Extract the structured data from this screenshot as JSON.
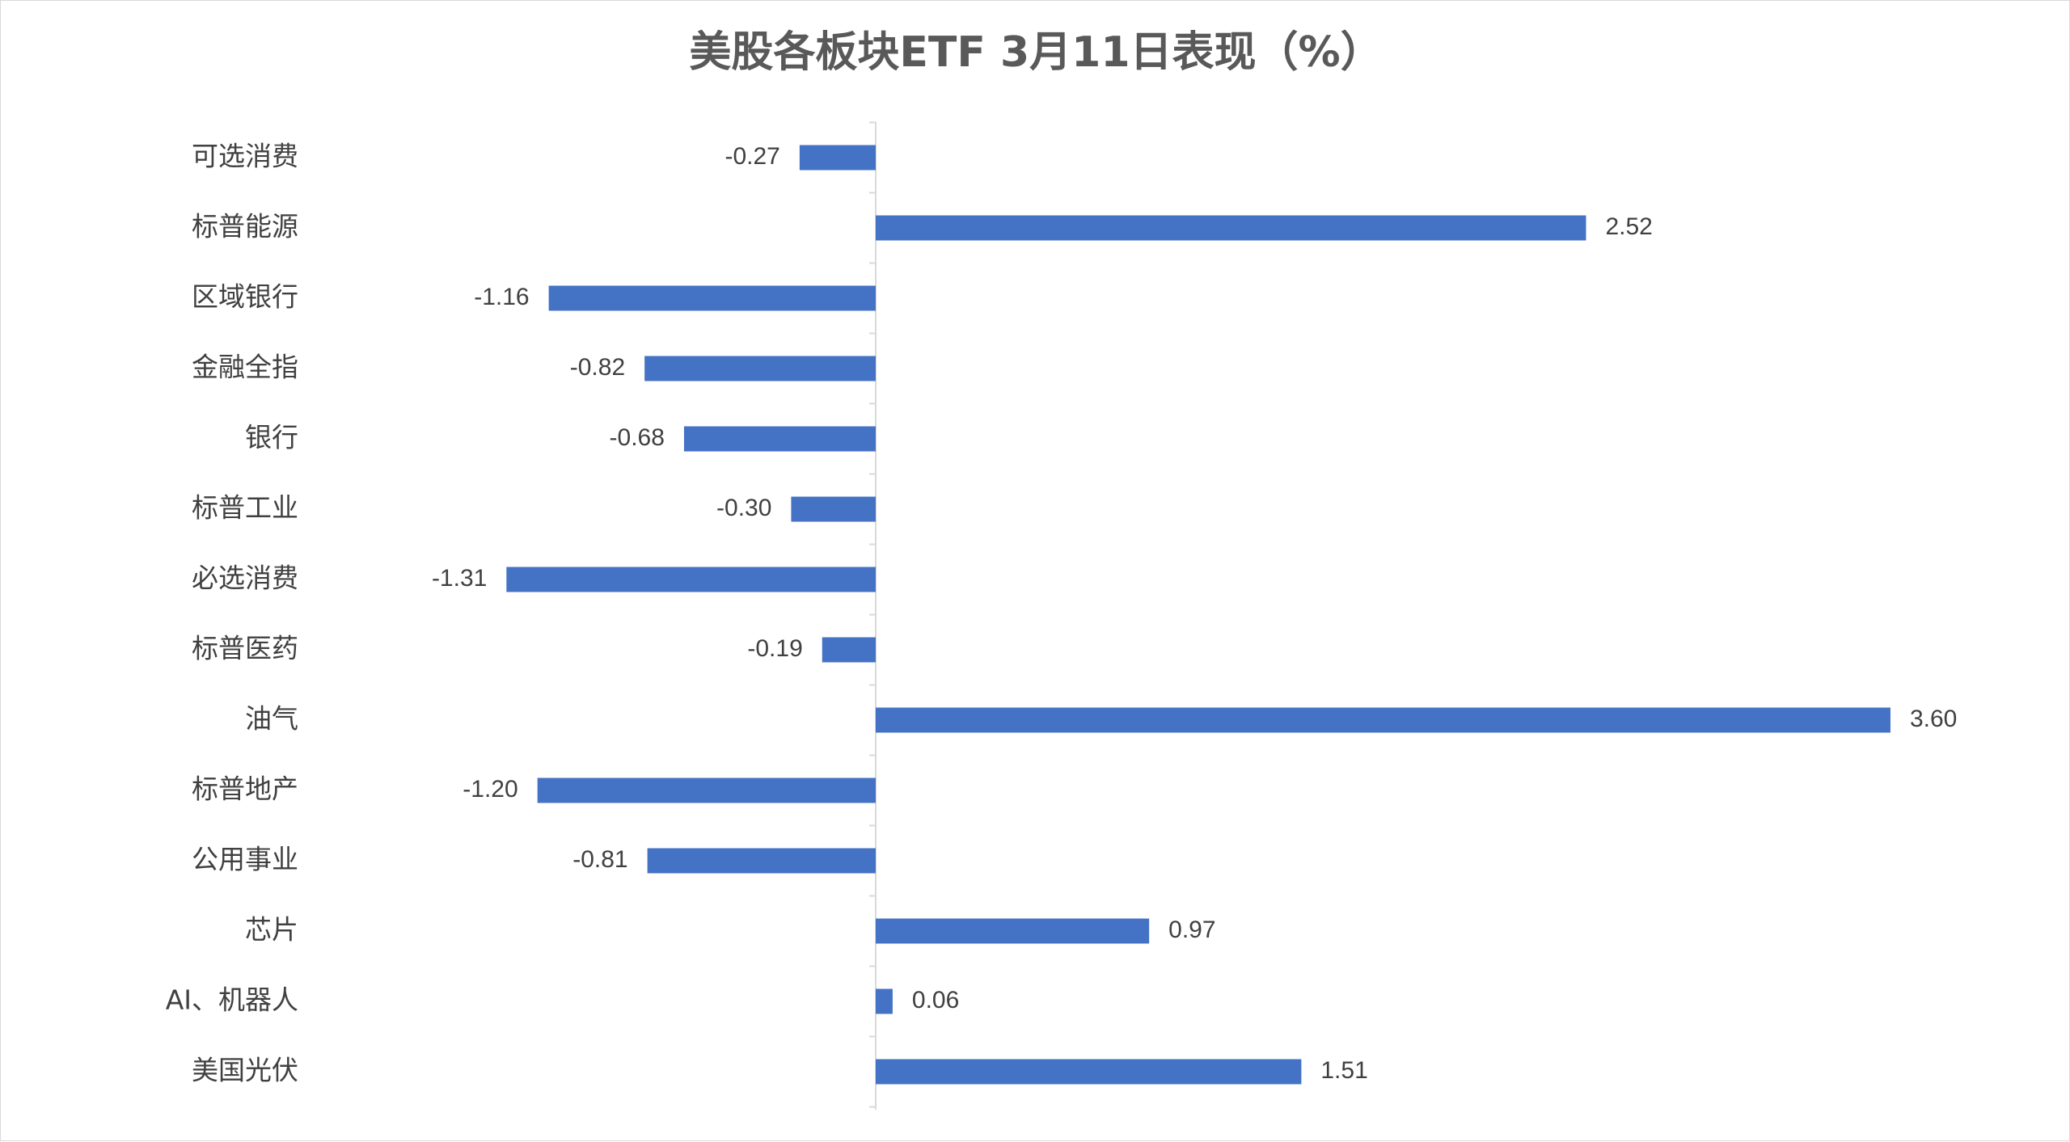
{
  "chart_data": {
    "type": "bar",
    "orientation": "horizontal",
    "title": "美股各板块ETF  3月11日表现（%）",
    "categories": [
      "可选消费",
      "标普能源",
      "区域银行",
      "金融全指",
      "银行",
      "标普工业",
      "必选消费",
      "标普医药",
      "油气",
      "标普地产",
      "公用事业",
      "芯片",
      "AI、机器人",
      "美国光伏"
    ],
    "values": [
      -0.27,
      2.52,
      -1.16,
      -0.82,
      -0.68,
      -0.3,
      -1.31,
      -0.19,
      3.6,
      -1.2,
      -0.81,
      0.97,
      0.06,
      1.51
    ],
    "value_labels": [
      "-0.27",
      "2.52",
      "-1.16",
      "-0.82",
      "-0.68",
      "-0.30",
      "-1.31",
      "-0.19",
      "3.60",
      "-1.20",
      "-0.81",
      "0.97",
      "0.06",
      "1.51"
    ],
    "xlim": [
      -1.31,
      3.6
    ],
    "bar_color": "#4472c4",
    "axis_color": "#d9d9d9",
    "grid": false,
    "legend": "none"
  }
}
